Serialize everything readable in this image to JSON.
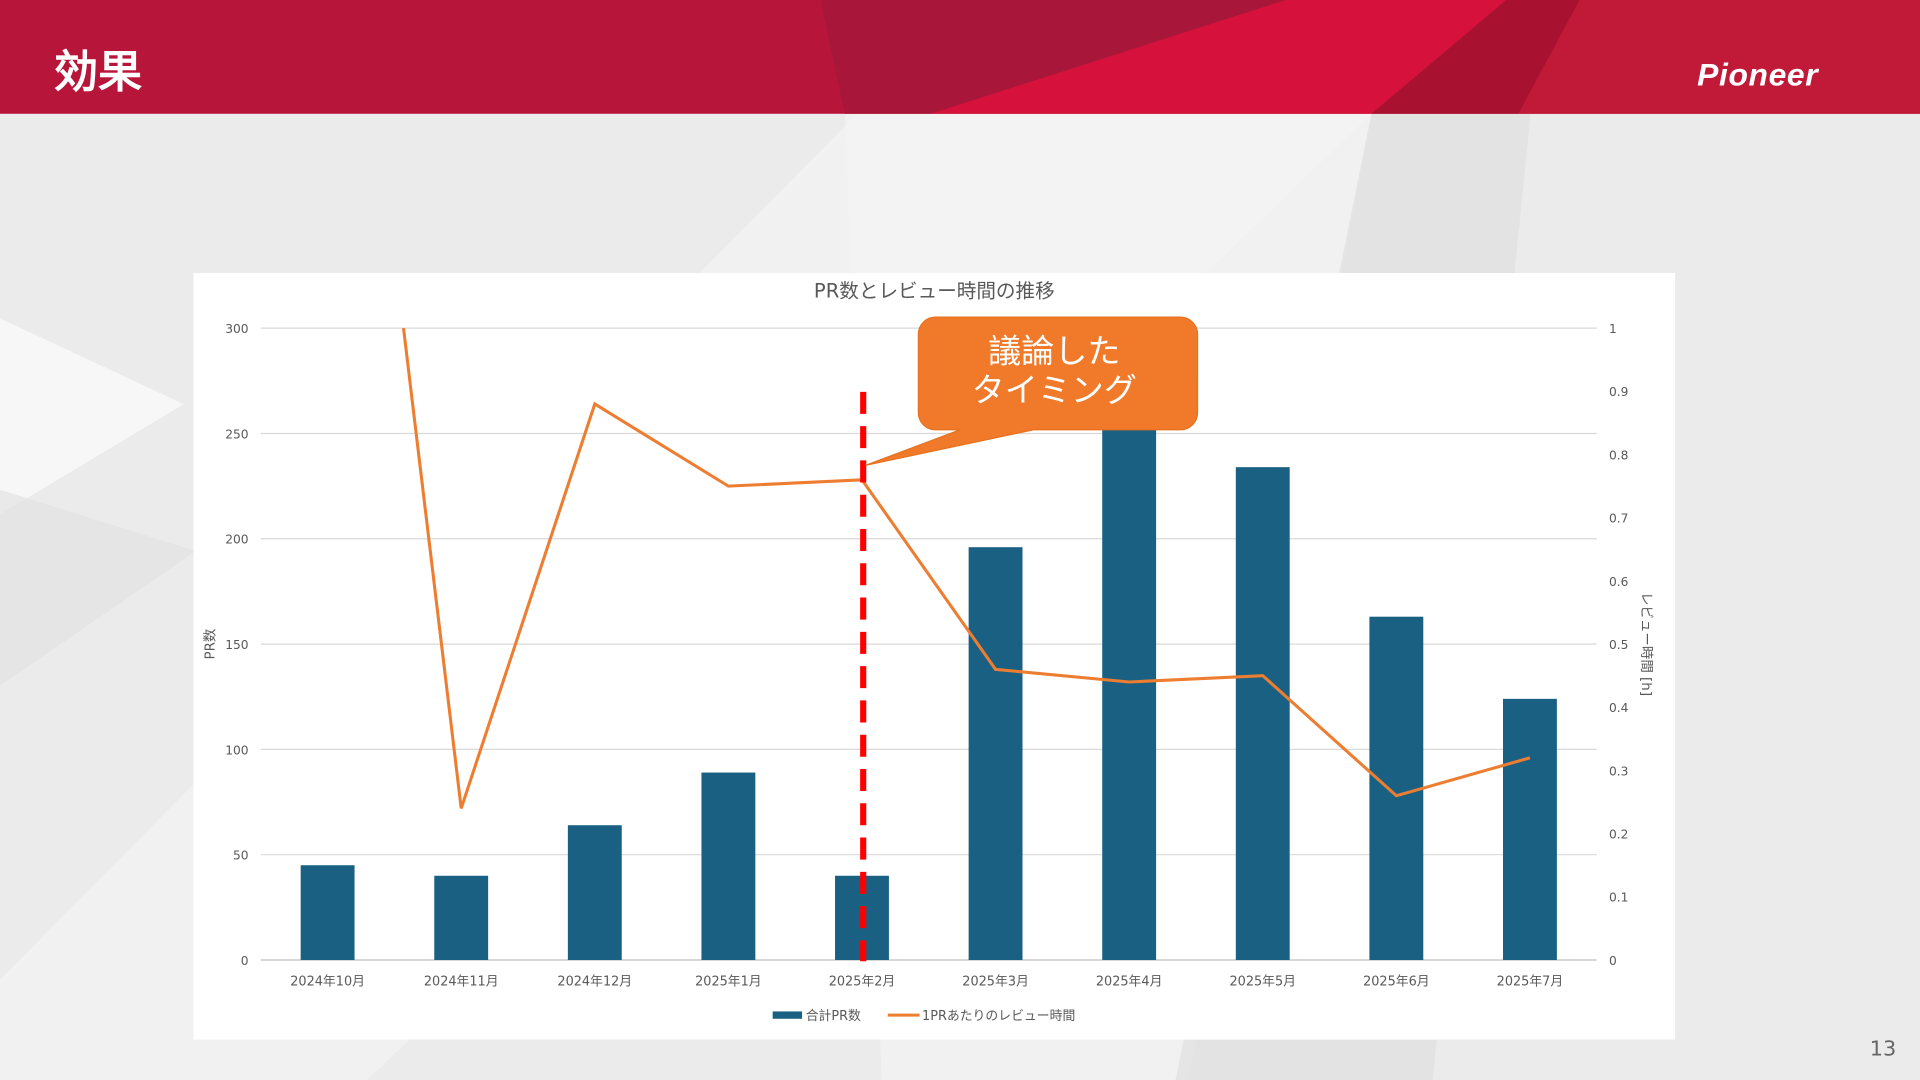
{
  "slide": {
    "title": "効果",
    "logo_text": "Pioneer",
    "page_number": "13"
  },
  "colors": {
    "header": "#b8153b",
    "bar": "#1a6082",
    "line": "#ed7d31",
    "marker_line": "#ff0000",
    "callout": "#f07a2a"
  },
  "callout": {
    "line1": "議論した",
    "line2": "タイミング",
    "points_to": "2025年2月"
  },
  "chart_data": {
    "type": "bar+line",
    "title": "PR数とレビュー時間の推移",
    "categories": [
      "2024年10月",
      "2024年11月",
      "2024年12月",
      "2025年1月",
      "2025年2月",
      "2025年3月",
      "2025年4月",
      "2025年5月",
      "2025年6月",
      "2025年7月"
    ],
    "ylabel": "PR数",
    "ylabel_right": "レビュー時間 [h]",
    "ylim": [
      0,
      300
    ],
    "yticks": [
      "0",
      "50",
      "100",
      "150",
      "200",
      "250",
      "300"
    ],
    "ylim_right": [
      0,
      1
    ],
    "yticks_right": [
      "0",
      "0.1",
      "0.2",
      "0.3",
      "0.4",
      "0.5",
      "0.6",
      "0.7",
      "0.8",
      "0.9",
      "1"
    ],
    "grid": true,
    "legend": "bottom",
    "series": [
      {
        "name": "合計PR数",
        "type": "bar",
        "axis": "left",
        "values": [
          45,
          40,
          64,
          89,
          40,
          196,
          265,
          234,
          163,
          124
        ]
      },
      {
        "name": "1PRあたりのレビュー時間",
        "type": "line",
        "axis": "right",
        "values": [
          2.0,
          0.24,
          0.88,
          0.75,
          0.76,
          0.46,
          0.44,
          0.45,
          0.26,
          0.32
        ]
      }
    ],
    "annotation": {
      "type": "vertical-dashed-line",
      "at": "2025年2月"
    }
  }
}
